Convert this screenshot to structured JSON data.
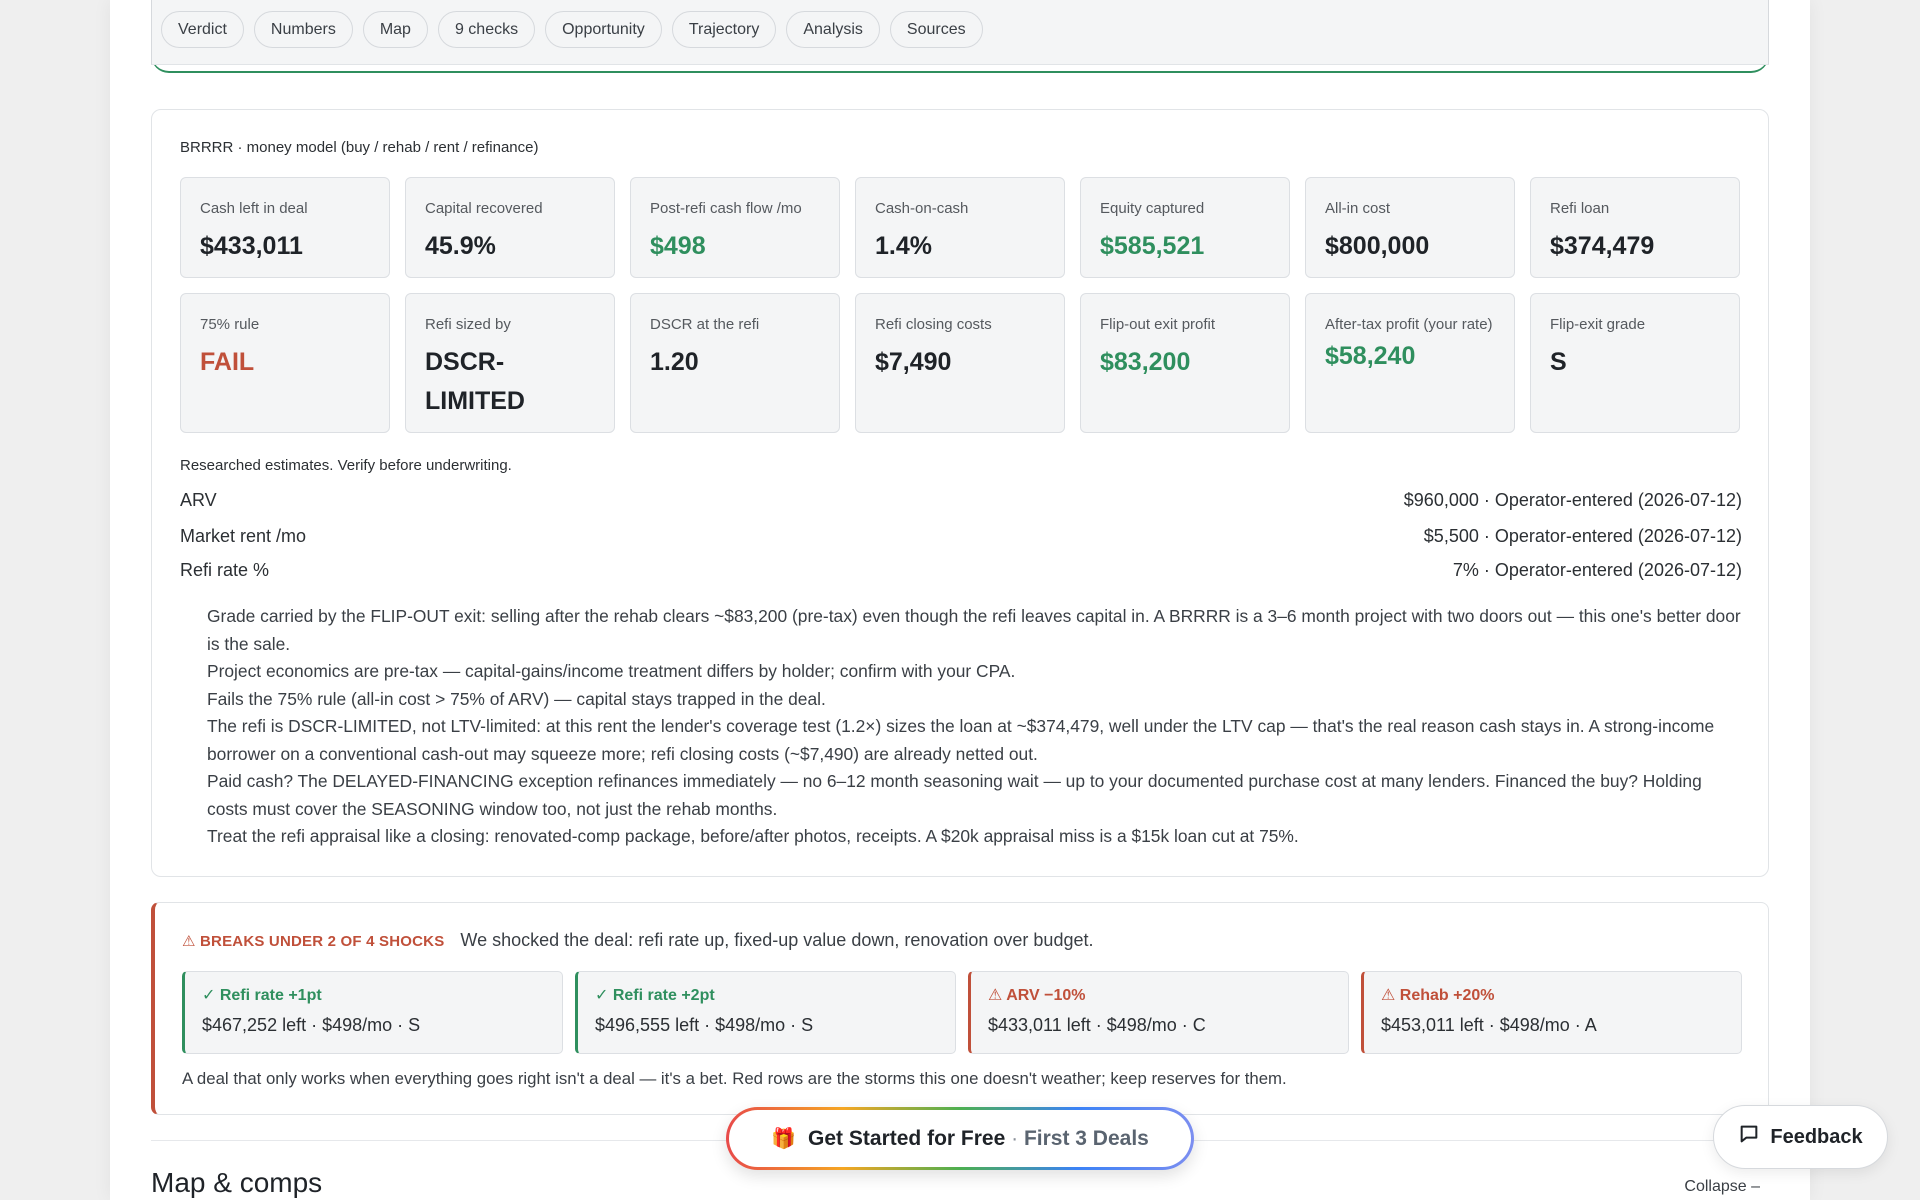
{
  "tabs": [
    "Verdict",
    "Numbers",
    "Map",
    "9 checks",
    "Opportunity",
    "Trajectory",
    "Analysis",
    "Sources"
  ],
  "brrrr": {
    "title": "BRRRR · money model (buy / rehab / rent / refinance)",
    "metrics_row1": [
      {
        "label": "Cash left in deal",
        "value": "$433,011",
        "tone": "default"
      },
      {
        "label": "Capital recovered",
        "value": "45.9%",
        "tone": "default"
      },
      {
        "label": "Post-refi cash flow /mo",
        "value": "$498",
        "tone": "green"
      },
      {
        "label": "Cash-on-cash",
        "value": "1.4%",
        "tone": "default"
      },
      {
        "label": "Equity captured",
        "value": "$585,521",
        "tone": "green"
      },
      {
        "label": "All-in cost",
        "value": "$800,000",
        "tone": "default"
      },
      {
        "label": "Refi loan",
        "value": "$374,479",
        "tone": "default"
      }
    ],
    "metrics_row2": [
      {
        "label": "75% rule",
        "value": "FAIL",
        "tone": "red"
      },
      {
        "label": "Refi sized by",
        "value": "DSCR-LIMITED",
        "tone": "default"
      },
      {
        "label": "DSCR at the refi",
        "value": "1.20",
        "tone": "default"
      },
      {
        "label": "Refi closing costs",
        "value": "$7,490",
        "tone": "default"
      },
      {
        "label": "Flip-out exit profit",
        "value": "$83,200",
        "tone": "green"
      },
      {
        "label": "After-tax profit (your rate)",
        "value": "$58,240",
        "tone": "green"
      },
      {
        "label": "Flip-exit grade",
        "value": "S",
        "tone": "default"
      }
    ],
    "estimates_note": "Researched estimates. Verify before underwriting.",
    "estimates": [
      {
        "label": "ARV",
        "value": "$960,000 · Operator-entered (2026-07-12)"
      },
      {
        "label": "Market rent /mo",
        "value": "$5,500 · Operator-entered (2026-07-12)"
      },
      {
        "label": "Refi rate %",
        "value": "7% · Operator-entered (2026-07-12)"
      }
    ],
    "notes": [
      "Grade carried by the FLIP-OUT exit: selling after the rehab clears ~$83,200 (pre-tax) even though the refi leaves capital in. A BRRRR is a 3–6 month project with two doors out — this one's better door is the sale.",
      "Project economics are pre-tax — capital-gains/income treatment differs by holder; confirm with your CPA.",
      "Fails the 75% rule (all-in cost > 75% of ARV) — capital stays trapped in the deal.",
      "The refi is DSCR-LIMITED, not LTV-limited: at this rent the lender's coverage test (1.2×) sizes the loan at ~$374,479, well under the LTV cap — that's the real reason cash stays in. A strong-income borrower on a conventional cash-out may squeeze more; refi closing costs (~$7,490) are already netted out.",
      "Paid cash? The DELAYED-FINANCING exception refinances immediately — no 6–12 month seasoning wait — up to your documented purchase cost at many lenders. Financed the buy? Holding costs must cover the SEASONING window too, not just the rehab months.",
      "Treat the refi appraisal like a closing: renovated-comp package, before/after photos, receipts. A $20k appraisal miss is a $15k loan cut at 75%."
    ]
  },
  "shocks": {
    "badge": "⚠ BREAKS UNDER 2 OF 4 SHOCKS",
    "description": "We shocked the deal: refi rate up, fixed-up value down, renovation over budget.",
    "items": [
      {
        "name": "✓ Refi rate +1pt",
        "value": "$467,252 left · $498/mo · S",
        "status": "ok"
      },
      {
        "name": "✓ Refi rate +2pt",
        "value": "$496,555 left · $498/mo · S",
        "status": "ok"
      },
      {
        "name": "⚠ ARV −10%",
        "value": "$433,011 left · $498/mo · C",
        "status": "bad"
      },
      {
        "name": "⚠ Rehab +20%",
        "value": "$453,011 left · $498/mo · A",
        "status": "bad"
      }
    ],
    "footer": "A deal that only works when everything goes right isn't a deal — it's a bet. Red rows are the storms this one doesn't weather; keep reserves for them."
  },
  "map_section": {
    "title": "Map & comps",
    "collapse_label": "Collapse –"
  },
  "cta": {
    "icon": "gift-icon",
    "label_main": "Get Started for Free",
    "separator": "·",
    "label_sub": "First 3 Deals"
  },
  "feedback": {
    "icon": "chat-bubble-icon",
    "label": "Feedback"
  },
  "colors": {
    "green": "#2f8f5e",
    "red": "#c0503a",
    "card_bg": "#f4f5f6"
  }
}
